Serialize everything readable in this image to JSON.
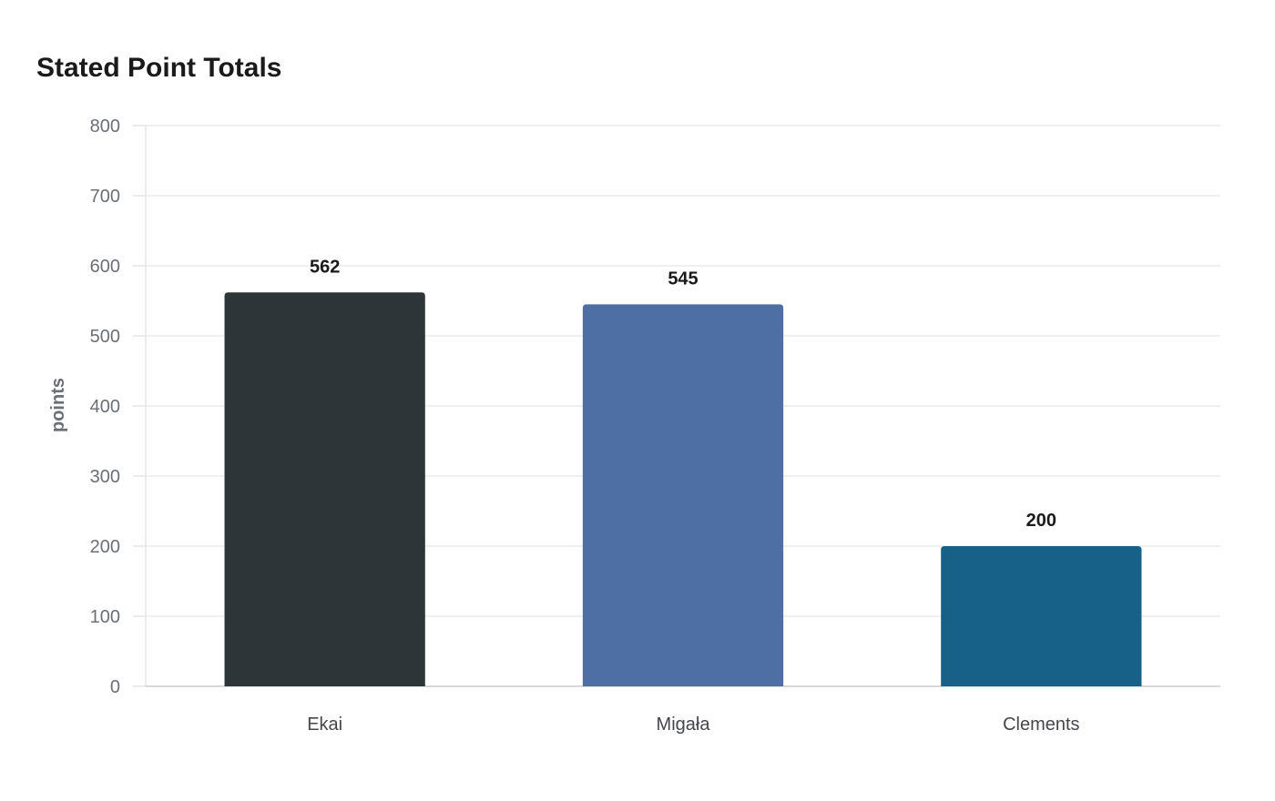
{
  "chart_data": {
    "type": "bar",
    "title": "Stated Point Totals",
    "xlabel": "",
    "ylabel": "points",
    "categories": [
      "Ekai",
      "Migała",
      "Clements"
    ],
    "values": [
      562,
      545,
      200
    ],
    "colors": [
      "#2e3538",
      "#4d6fa3",
      "#176087"
    ],
    "ylim": [
      0,
      800
    ],
    "yticks": [
      0,
      100,
      200,
      300,
      400,
      500,
      600,
      700,
      800
    ],
    "grid": true,
    "legend": "none",
    "data_labels": true
  }
}
